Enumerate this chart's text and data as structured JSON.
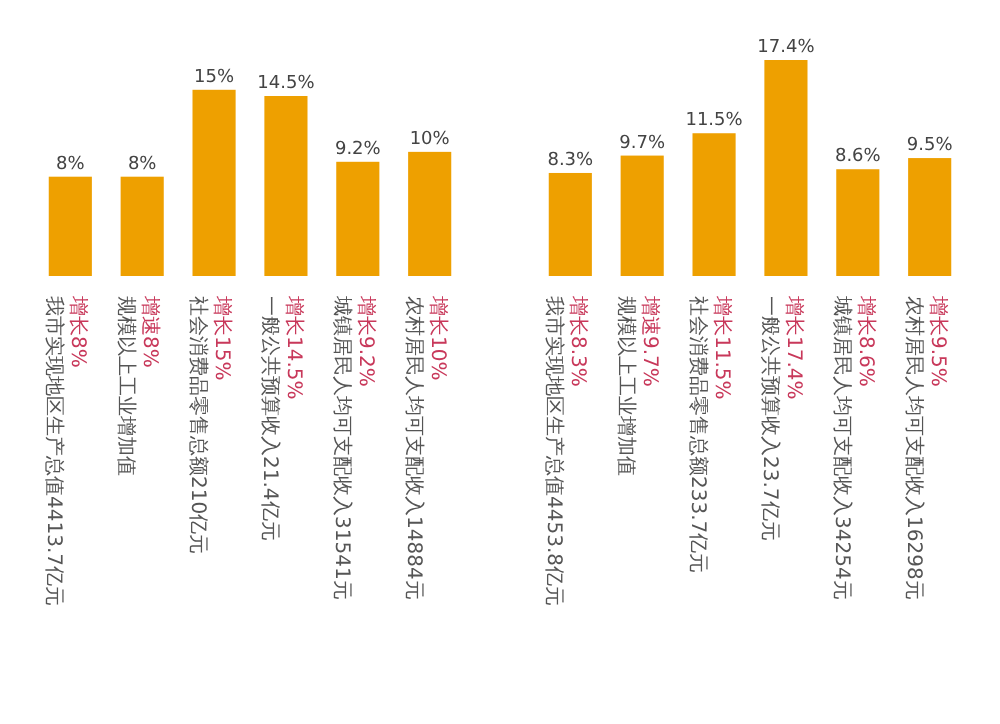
{
  "chart_data": [
    {
      "type": "bar",
      "categories": [
        "增长8%\n我市实现地区生产总值4413.7亿元",
        "增速8%\n规模以上工业增加值",
        "增长15%\n社会消费品零售总额210亿元",
        "增长14.5%\n一般公共预算收入21.4亿元",
        "增长9.2%\n城镇居民人均可支配收入31541元",
        "增长10%\n农村居民人均可支配收入14884元"
      ],
      "values": [
        8,
        8,
        15,
        14.5,
        9.2,
        10
      ],
      "value_labels": [
        "8%",
        "8%",
        "15%",
        "14.5%",
        "9.2%",
        "10%"
      ],
      "color": "#eea000"
    },
    {
      "type": "bar",
      "categories": [
        "增长8.3%\n我市实现地区生产总值4453.8亿元",
        "增速9.7%\n规模以上工业增加值",
        "增长11.5%\n社会消费品零售总额233.7亿元",
        "增长17.4%\n一般公共预算收入23.7亿元",
        "增长8.6%\n城镇居民人均可支配收入34254元",
        "增长9.5%\n农村居民人均可支配收入16298元"
      ],
      "values": [
        8.3,
        9.7,
        11.5,
        17.4,
        8.6,
        9.5
      ],
      "value_labels": [
        "8.3%",
        "9.7%",
        "11.5%",
        "17.4%",
        "8.6%",
        "9.5%"
      ],
      "color": "#eea000"
    }
  ]
}
